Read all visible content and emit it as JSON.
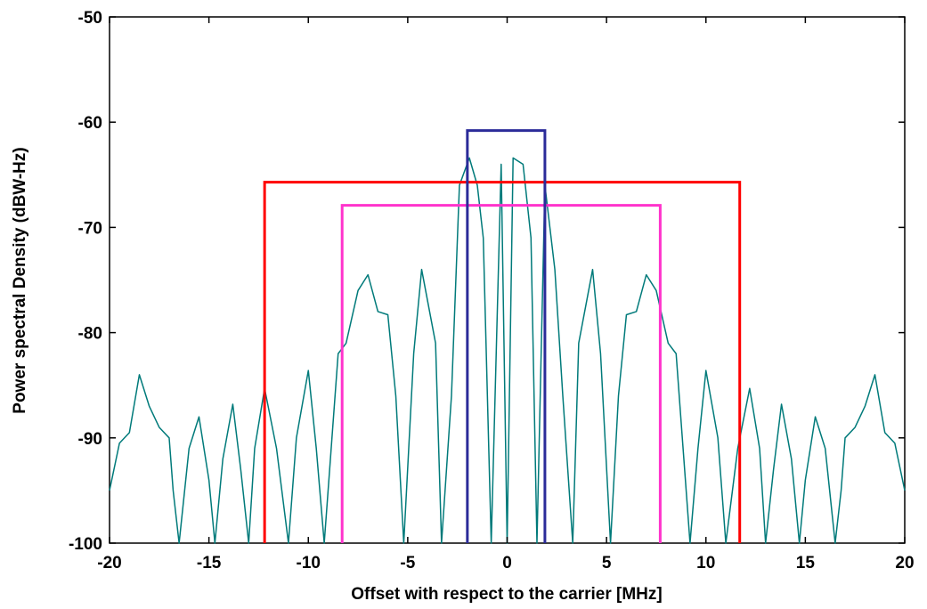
{
  "chart_data": {
    "type": "line",
    "title": "",
    "xlabel": "Offset with respect to the carrier [MHz]",
    "ylabel": "Power spectral Density (dBW-Hz)",
    "xlim": [
      -20,
      20
    ],
    "ylim": [
      -100,
      -50
    ],
    "xticks": [
      -20,
      -15,
      -10,
      -5,
      0,
      5,
      10,
      15,
      20
    ],
    "yticks": [
      -50,
      -60,
      -70,
      -80,
      -90,
      -100
    ],
    "grid": false,
    "legend": "none",
    "spectrum": {
      "color": "#007a7a",
      "description_points": {
        "x": [
          -20,
          -19.5,
          -19,
          -18.5,
          -18,
          -17.5,
          -17,
          -16.8,
          -16.5,
          -16,
          -15.5,
          -15,
          -14.7,
          -14.3,
          -13.8,
          -13.4,
          -13,
          -12.7,
          -12.2,
          -11.6,
          -11,
          -10.6,
          -10,
          -9.6,
          -9.2,
          -8.5,
          -8.1,
          -7.5,
          -7,
          -6.5,
          -6,
          -5.6,
          -5.2,
          -4.7,
          -4.3,
          -3.6,
          -3.3,
          -2.8,
          -2.4,
          -1.9,
          -1.5,
          -1.2,
          -0.8,
          -0.3,
          0,
          0.3,
          0.8,
          1.2,
          1.5,
          1.9,
          2.4,
          2.8,
          3.3,
          3.6,
          4.3,
          4.7,
          5.2,
          5.6,
          6,
          6.5,
          7,
          7.5,
          8.1,
          8.5,
          9.2,
          9.6,
          10,
          10.6,
          11,
          11.6,
          12.2,
          12.7,
          13,
          13.4,
          13.8,
          14.3,
          14.7,
          15,
          15.5,
          16,
          16.5,
          16.8,
          17,
          17.5,
          18,
          18.5,
          19,
          19.5,
          20
        ],
        "y": [
          -95,
          -90.5,
          -89.5,
          -84,
          -87,
          -89,
          -90,
          -95,
          -100,
          -91,
          -88,
          -94,
          -100,
          -92,
          -86.8,
          -93,
          -100,
          -91,
          -85.3,
          -91,
          -100,
          -90,
          -83.6,
          -91,
          -100,
          -82,
          -81,
          -76,
          -74.5,
          -78,
          -78.3,
          -86,
          -100,
          -82,
          -74,
          -81,
          -100,
          -86,
          -66,
          -63.4,
          -66,
          -71,
          -100,
          -64,
          -100,
          -63.4,
          -64,
          -71,
          -100,
          -66,
          -74,
          -86,
          -100,
          -81,
          -74,
          -82,
          -100,
          -86,
          -78.3,
          -78,
          -74.5,
          -76,
          -81,
          -82,
          -100,
          -91,
          -83.6,
          -90,
          -100,
          -91,
          -85.3,
          -91,
          -100,
          -93,
          -86.8,
          -92,
          -100,
          -94,
          -88,
          -91,
          -100,
          -95,
          -90,
          -89,
          -87,
          -84,
          -89.5,
          -90.5,
          -95
        ]
      }
    },
    "masks": [
      {
        "color": "#ff0000",
        "x_left": -12.2,
        "x_right": 11.7,
        "level": -65.7
      },
      {
        "color": "#ff33cc",
        "x_left": -8.3,
        "x_right": 7.7,
        "level": -67.9
      },
      {
        "color": "#2b2b99",
        "x_left": -2.0,
        "x_right": 1.9,
        "level": -60.8
      }
    ]
  }
}
